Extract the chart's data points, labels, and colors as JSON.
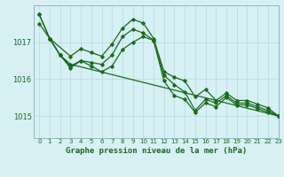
{
  "bg_color": "#d6f0f4",
  "grid_color": "#b8d8e0",
  "line_color": "#1a6b1a",
  "title": "Graphe pression niveau de la mer (hPa)",
  "xlim": [
    -0.5,
    23
  ],
  "ylim": [
    1014.4,
    1018.0
  ],
  "yticks": [
    1015,
    1016,
    1017
  ],
  "xticks": [
    0,
    1,
    2,
    3,
    4,
    5,
    6,
    7,
    8,
    9,
    10,
    11,
    12,
    13,
    14,
    15,
    16,
    17,
    18,
    19,
    20,
    21,
    22,
    23
  ],
  "series": [
    {
      "x": [
        0,
        1,
        2,
        3,
        4,
        5,
        6,
        7,
        8,
        9,
        10,
        11,
        12,
        13,
        14,
        15,
        16,
        17,
        18,
        19,
        20,
        21,
        22,
        23
      ],
      "y": [
        1017.75,
        1017.1,
        1016.65,
        1016.3,
        1016.5,
        1016.35,
        1016.2,
        1016.35,
        1016.8,
        1017.0,
        1017.15,
        1017.05,
        1015.95,
        1015.55,
        1015.45,
        1015.1,
        1015.35,
        1015.25,
        1015.5,
        1015.3,
        1015.3,
        1015.2,
        1015.1,
        1015.0
      ]
    },
    {
      "x": [
        0,
        1,
        2,
        3,
        4,
        5,
        6,
        7,
        8,
        9,
        10,
        11,
        12,
        13,
        14,
        15,
        16,
        17,
        18,
        19,
        20,
        21,
        22,
        23
      ],
      "y": [
        1017.5,
        1017.1,
        1016.65,
        1016.35,
        1016.5,
        1016.45,
        1016.4,
        1016.65,
        1017.15,
        1017.35,
        1017.25,
        1017.05,
        1016.1,
        1015.85,
        1015.65,
        1015.15,
        1015.45,
        1015.35,
        1015.55,
        1015.35,
        1015.35,
        1015.25,
        1015.15,
        1015.0
      ]
    },
    {
      "x": [
        1,
        3,
        4,
        5,
        6,
        7,
        8,
        9,
        10,
        11,
        12,
        13,
        14,
        15,
        16,
        17,
        18,
        19,
        20,
        21,
        22,
        23
      ],
      "y": [
        1017.1,
        1016.62,
        1016.82,
        1016.72,
        1016.62,
        1016.95,
        1017.38,
        1017.62,
        1017.52,
        1017.1,
        1016.2,
        1016.05,
        1015.95,
        1015.52,
        1015.72,
        1015.42,
        1015.62,
        1015.42,
        1015.42,
        1015.32,
        1015.22,
        1015.0
      ]
    },
    {
      "x": [
        0,
        1,
        2,
        3,
        23
      ],
      "y": [
        1017.75,
        1017.1,
        1016.65,
        1016.4,
        1015.0
      ]
    }
  ]
}
